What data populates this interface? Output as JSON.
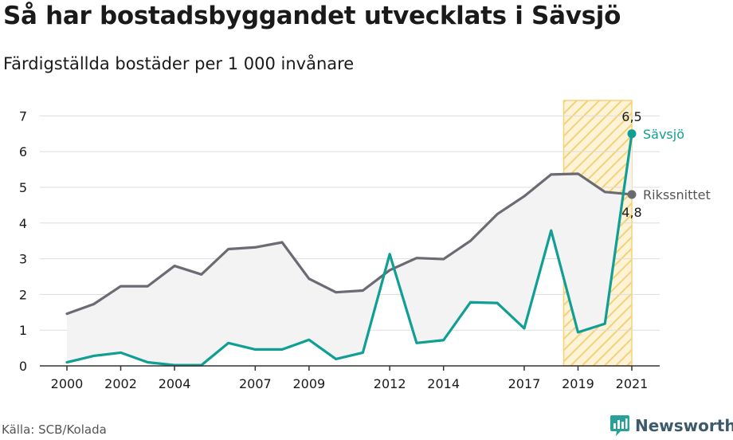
{
  "header": {
    "title": "Så har bostadsbyggandet utvecklats i Sävsjö",
    "subtitle": "Färdigställda bostäder per 1 000 invånare"
  },
  "footer": {
    "source": "Källa: SCB/Kolada",
    "brand": "Newsworthy"
  },
  "colors": {
    "savsjo": "#119e94",
    "riket": "#6b6b73",
    "highlight": "#f5d27a",
    "area_fill": "#f3f3f3",
    "grid": "#dddddd"
  },
  "icons": {
    "brand_logo": "newsworthy-chart-bubble-icon"
  },
  "chart_data": {
    "type": "line",
    "x": [
      2000,
      2001,
      2002,
      2003,
      2004,
      2005,
      2006,
      2007,
      2008,
      2009,
      2010,
      2011,
      2012,
      2013,
      2014,
      2015,
      2016,
      2017,
      2018,
      2019,
      2020,
      2021
    ],
    "x_ticks": [
      "2000",
      "2002",
      "2004",
      "2007",
      "2009",
      "2012",
      "2014",
      "2017",
      "2019",
      "2021"
    ],
    "y_ticks": [
      "0",
      "1",
      "2",
      "3",
      "4",
      "5",
      "6",
      "7"
    ],
    "ylim": [
      0,
      7
    ],
    "highlight_range": [
      2019,
      2021
    ],
    "series": [
      {
        "name": "Sävsjö",
        "key": "savsjo",
        "values": [
          0.1,
          0.28,
          0.37,
          0.1,
          0.02,
          0.02,
          0.64,
          0.46,
          0.46,
          0.73,
          0.19,
          0.37,
          3.13,
          0.64,
          0.72,
          1.78,
          1.76,
          1.05,
          3.79,
          0.94,
          1.18,
          6.5
        ],
        "end_value_label": "6,5"
      },
      {
        "name": "Rikssnittet",
        "key": "riket",
        "values": [
          1.46,
          1.73,
          2.23,
          2.23,
          2.8,
          2.56,
          3.27,
          3.32,
          3.46,
          2.44,
          2.06,
          2.11,
          2.68,
          3.02,
          2.99,
          3.5,
          4.25,
          4.75,
          5.36,
          5.38,
          4.87,
          4.8
        ],
        "end_value_label": "4,8"
      }
    ]
  }
}
